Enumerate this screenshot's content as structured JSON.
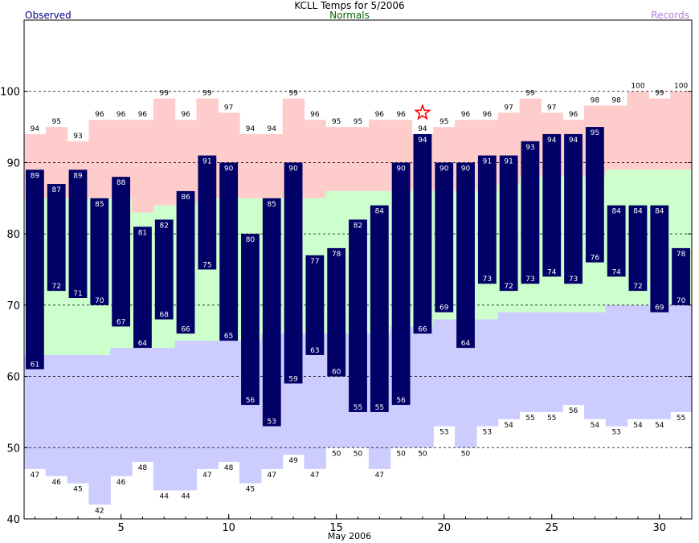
{
  "title": "KCLL Temps for 5/2006",
  "legend": {
    "observed": "Observed",
    "normals": "Normals",
    "records": "Records"
  },
  "colors": {
    "observed_bar": "#000066",
    "record_high_band": "#ffcccc",
    "normal_band": "#ccffcc",
    "record_low_band": "#ccccff",
    "observed_legend": "#000080",
    "normals_legend": "#006400",
    "records_legend": "#b07cd8"
  },
  "chart_data": {
    "type": "bar",
    "xlabel": "May 2006",
    "ylim": [
      40,
      110
    ],
    "yticks": [
      40,
      50,
      60,
      70,
      80,
      90,
      100
    ],
    "xticks": [
      5,
      10,
      15,
      20,
      25,
      30
    ],
    "dashed_gridlines": [
      50,
      60,
      70,
      80,
      90,
      100
    ],
    "days": [
      1,
      2,
      3,
      4,
      5,
      6,
      7,
      8,
      9,
      10,
      11,
      12,
      13,
      14,
      15,
      16,
      17,
      18,
      19,
      20,
      21,
      22,
      23,
      24,
      25,
      26,
      27,
      28,
      29,
      30,
      31
    ],
    "observed_high": [
      89,
      87,
      89,
      85,
      88,
      81,
      82,
      86,
      91,
      90,
      80,
      85,
      90,
      77,
      78,
      82,
      84,
      90,
      94,
      90,
      90,
      91,
      91,
      93,
      94,
      94,
      95,
      84,
      84,
      84,
      78
    ],
    "observed_low": [
      61,
      72,
      71,
      70,
      67,
      64,
      68,
      66,
      75,
      65,
      56,
      53,
      59,
      63,
      60,
      55,
      55,
      56,
      66,
      69,
      64,
      73,
      72,
      73,
      74,
      73,
      76,
      74,
      72,
      69,
      70
    ],
    "normal_high": [
      85,
      85,
      85,
      85,
      85,
      83,
      84,
      84,
      85,
      85,
      85,
      85,
      85,
      85,
      86,
      86,
      86,
      86,
      86,
      86,
      86,
      86,
      87,
      88,
      88,
      88,
      88,
      89,
      89,
      89,
      89
    ],
    "normal_low": [
      63,
      63,
      63,
      63,
      64,
      64,
      64,
      65,
      65,
      65,
      65,
      66,
      66,
      66,
      66,
      66,
      66,
      67,
      67,
      68,
      68,
      68,
      69,
      69,
      69,
      69,
      69,
      70,
      70,
      70,
      70
    ],
    "record_high": [
      94,
      95,
      93,
      96,
      96,
      96,
      99,
      96,
      99,
      97,
      94,
      94,
      99,
      96,
      95,
      95,
      96,
      96,
      94,
      95,
      96,
      96,
      97,
      99,
      97,
      96,
      98,
      98,
      100,
      99,
      100
    ],
    "record_low": [
      47,
      46,
      45,
      42,
      46,
      48,
      44,
      44,
      47,
      48,
      45,
      47,
      49,
      47,
      50,
      50,
      47,
      50,
      50,
      53,
      50,
      53,
      54,
      55,
      55,
      56,
      54,
      53,
      54,
      54,
      55
    ],
    "record_set_marker": {
      "day": 19,
      "value": 97,
      "symbol": "star"
    }
  }
}
